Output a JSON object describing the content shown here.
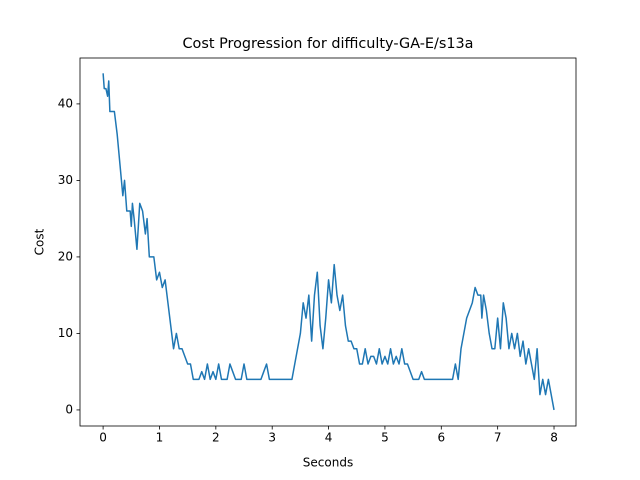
{
  "chart_data": {
    "type": "line",
    "title": "Cost Progression for difficulty-GA-E/s13a",
    "x_label": "Seconds",
    "y_label": "Cost",
    "x": [
      0,
      0.02,
      0.05,
      0.08,
      0.1,
      0.12,
      0.2,
      0.25,
      0.3,
      0.35,
      0.38,
      0.42,
      0.48,
      0.5,
      0.52,
      0.55,
      0.6,
      0.65,
      0.7,
      0.75,
      0.78,
      0.82,
      0.9,
      0.95,
      1.0,
      1.05,
      1.1,
      1.15,
      1.2,
      1.25,
      1.3,
      1.35,
      1.4,
      1.45,
      1.5,
      1.55,
      1.6,
      1.7,
      1.75,
      1.8,
      1.85,
      1.9,
      1.95,
      2.0,
      2.05,
      2.1,
      2.2,
      2.25,
      2.3,
      2.35,
      2.45,
      2.5,
      2.55,
      2.8,
      2.85,
      2.9,
      2.95,
      3.35,
      3.4,
      3.5,
      3.55,
      3.6,
      3.65,
      3.7,
      3.75,
      3.8,
      3.85,
      3.9,
      3.95,
      4.0,
      4.05,
      4.1,
      4.15,
      4.2,
      4.25,
      4.3,
      4.35,
      4.4,
      4.45,
      4.5,
      4.55,
      4.6,
      4.65,
      4.7,
      4.75,
      4.8,
      4.85,
      4.9,
      4.95,
      5.0,
      5.05,
      5.1,
      5.15,
      5.2,
      5.25,
      5.3,
      5.35,
      5.4,
      5.5,
      5.6,
      5.65,
      5.7,
      6.2,
      6.25,
      6.3,
      6.35,
      6.45,
      6.55,
      6.6,
      6.65,
      6.7,
      6.72,
      6.75,
      6.8,
      6.85,
      6.9,
      6.95,
      7.0,
      7.05,
      7.1,
      7.15,
      7.2,
      7.25,
      7.3,
      7.35,
      7.4,
      7.45,
      7.5,
      7.55,
      7.6,
      7.65,
      7.7,
      7.75,
      7.8,
      7.85,
      7.9,
      7.95,
      8.0
    ],
    "series": [
      {
        "color": "#1f77b4",
        "values": [
          44,
          42,
          42,
          41,
          43,
          39,
          39,
          36,
          32,
          28,
          30,
          26,
          26,
          24,
          27,
          25,
          21,
          27,
          26,
          23,
          25,
          20,
          20,
          17,
          18,
          16,
          17,
          14,
          11,
          8,
          10,
          8,
          8,
          7,
          6,
          6,
          4,
          4,
          5,
          4,
          6,
          4,
          5,
          4,
          6,
          4,
          4,
          6,
          5,
          4,
          4,
          6,
          4,
          4,
          5,
          6,
          4,
          4,
          6,
          10,
          14,
          12,
          15,
          9,
          15,
          18,
          11,
          8,
          12,
          17,
          14,
          19,
          15,
          13,
          15,
          11,
          9,
          9,
          8,
          8,
          6,
          6,
          8,
          6,
          7,
          7,
          6,
          8,
          6,
          7,
          6,
          8,
          6,
          7,
          6,
          8,
          6,
          6,
          4,
          4,
          5,
          4,
          4,
          6,
          4,
          8,
          12,
          14,
          16,
          15,
          15,
          12,
          15,
          13,
          10,
          8,
          8,
          12,
          8,
          14,
          12,
          8,
          10,
          8,
          10,
          7,
          9,
          6,
          8,
          6,
          4,
          8,
          2,
          4,
          2,
          4,
          2,
          0
        ]
      }
    ],
    "xlim": [
      -0.41,
      8.39
    ],
    "ylim": [
      -2.1,
      46.0
    ],
    "xticks": [
      0,
      1,
      2,
      3,
      4,
      5,
      6,
      7,
      8
    ],
    "yticks": [
      0,
      10,
      20,
      30,
      40
    ]
  }
}
